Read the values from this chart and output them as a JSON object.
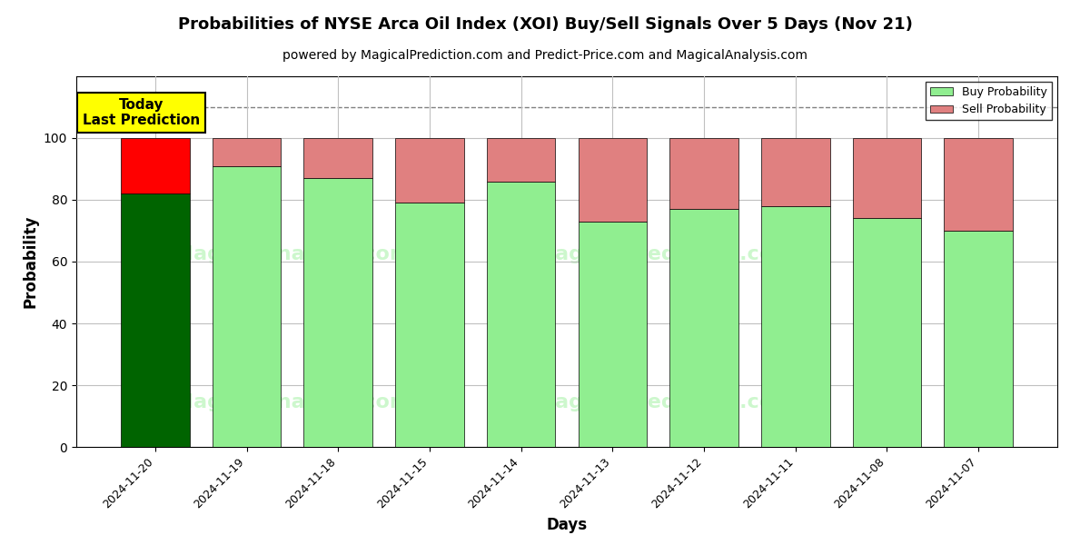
{
  "title": "Probabilities of NYSE Arca Oil Index (XOI) Buy/Sell Signals Over 5 Days (Nov 21)",
  "subtitle": "powered by MagicalPrediction.com and Predict-Price.com and MagicalAnalysis.com",
  "xlabel": "Days",
  "ylabel": "Probability",
  "categories": [
    "2024-11-20",
    "2024-11-19",
    "2024-11-18",
    "2024-11-15",
    "2024-11-14",
    "2024-11-13",
    "2024-11-12",
    "2024-11-11",
    "2024-11-08",
    "2024-11-07"
  ],
  "buy_values": [
    82,
    91,
    87,
    79,
    86,
    73,
    77,
    78,
    74,
    70
  ],
  "sell_values": [
    18,
    9,
    13,
    21,
    14,
    27,
    23,
    22,
    26,
    30
  ],
  "today_buy_color": "#006400",
  "today_sell_color": "#FF0000",
  "other_buy_color": "#90EE90",
  "other_sell_color": "#E08080",
  "legend_buy_color": "#90EE90",
  "legend_sell_color": "#E08080",
  "ylim": [
    0,
    120
  ],
  "yticks": [
    0,
    20,
    40,
    60,
    80,
    100
  ],
  "dashed_line_y": 110,
  "today_annotation": "Today\nLast Prediction",
  "annotation_bg_color": "#FFFF00",
  "background_color": "#FFFFFF",
  "grid_color": "#C0C0C0"
}
